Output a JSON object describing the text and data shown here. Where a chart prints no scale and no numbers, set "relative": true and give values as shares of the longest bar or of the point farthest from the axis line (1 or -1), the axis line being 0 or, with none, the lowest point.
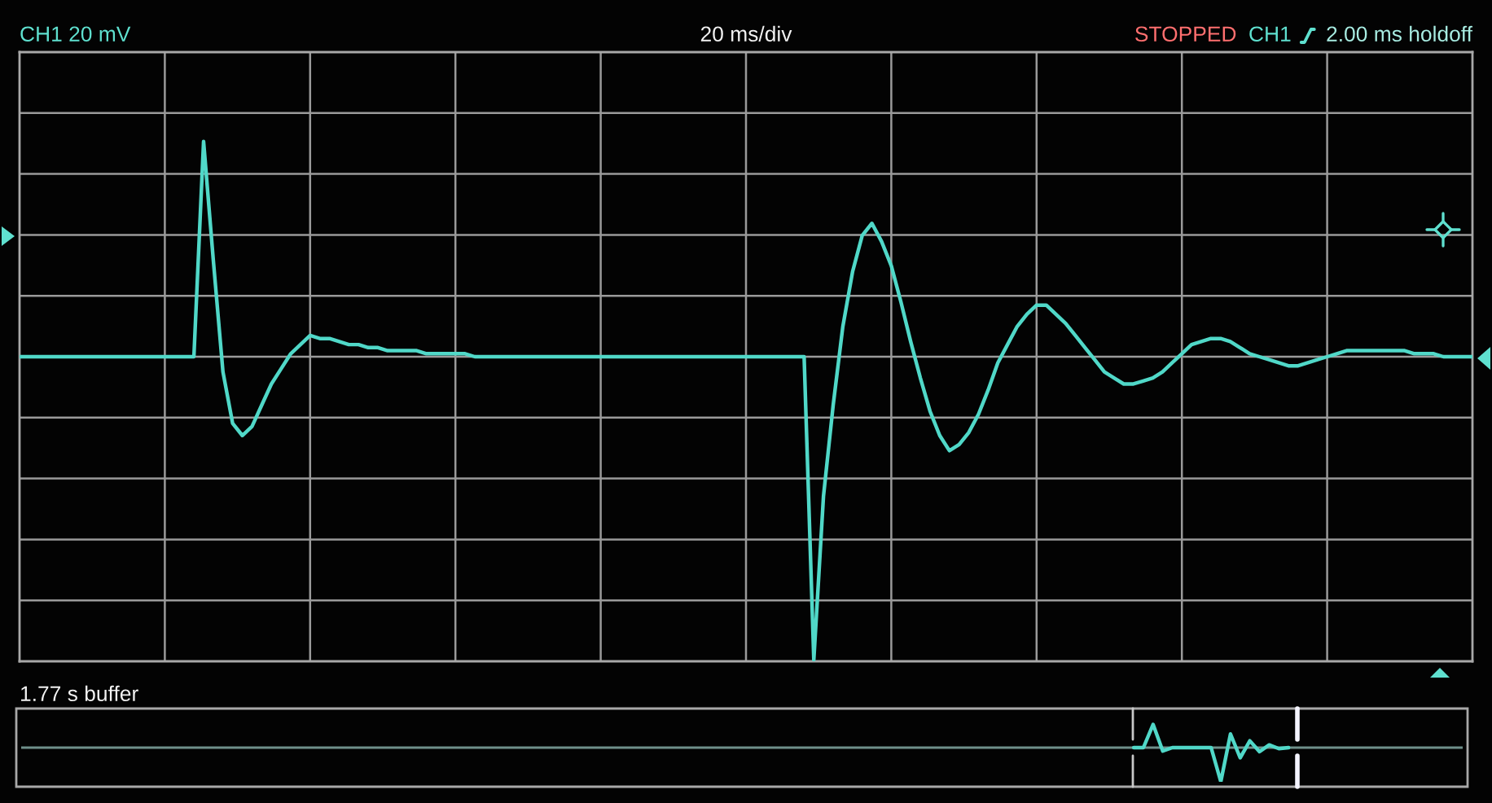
{
  "chart_data": [
    {
      "type": "line",
      "relative": true,
      "grid": true,
      "categories": [
        null,
        null,
        null,
        null,
        null,
        null,
        null,
        null,
        null,
        null,
        null,
        null,
        null,
        null,
        null,
        null,
        null,
        null,
        null,
        null,
        null,
        null,
        null,
        null,
        null,
        null,
        null,
        null,
        null,
        null,
        null,
        null,
        null,
        null,
        null,
        null,
        null,
        null,
        null,
        null,
        null,
        null,
        null,
        null,
        null,
        null,
        null,
        null,
        null,
        null,
        null,
        null,
        null,
        null,
        null,
        null,
        null,
        null,
        null,
        null,
        null,
        null,
        null,
        null,
        null,
        null,
        null,
        null,
        null,
        null,
        null,
        null,
        null,
        null,
        null,
        null,
        null,
        null,
        null,
        null,
        null,
        null,
        null,
        null,
        null,
        null,
        null,
        null,
        null,
        null,
        null,
        null,
        null,
        null,
        null,
        null,
        null,
        null,
        null,
        null,
        null,
        null,
        null,
        null,
        null,
        null,
        null,
        null,
        null,
        null,
        null,
        null,
        null,
        null,
        null,
        null,
        null,
        null,
        null,
        null,
        null,
        null,
        null,
        null,
        null,
        null,
        null,
        null,
        null,
        null,
        null,
        null,
        null,
        null,
        null,
        null,
        null,
        null,
        null,
        null,
        null,
        null,
        null,
        null,
        null,
        null,
        null,
        null,
        null,
        null,
        null
      ],
      "series": [
        {
          "color": "#50d8c8",
          "values": [
            0,
            0,
            0,
            0,
            0,
            0,
            0,
            0,
            0,
            0,
            0,
            0,
            0,
            0,
            0,
            0,
            0,
            0,
            0,
            0.71,
            0.32,
            -0.05,
            -0.22,
            -0.26,
            -0.23,
            -0.16,
            -0.09,
            -0.04,
            0.01,
            0.04,
            0.07,
            0.06,
            0.06,
            0.05,
            0.04,
            0.04,
            0.03,
            0.03,
            0.02,
            0.02,
            0.02,
            0.02,
            0.01,
            0.01,
            0.01,
            0.01,
            0.01,
            0,
            0,
            0,
            0,
            0,
            0,
            0,
            0,
            0,
            0,
            0,
            0,
            0,
            0,
            0,
            0,
            0,
            0,
            0,
            0,
            0,
            0,
            0,
            0,
            0,
            0,
            0,
            0,
            0,
            0,
            0,
            0,
            0,
            0,
            0,
            -1,
            -0.46,
            -0.16,
            0.1,
            0.28,
            0.4,
            0.44,
            0.38,
            0.3,
            0.18,
            0.05,
            -0.07,
            -0.18,
            -0.26,
            -0.31,
            -0.29,
            -0.25,
            -0.19,
            -0.11,
            -0.02,
            0.04,
            0.1,
            0.14,
            0.17,
            0.17,
            0.14,
            0.11,
            0.07,
            0.03,
            -0.01,
            -0.05,
            -0.07,
            -0.09,
            -0.09,
            -0.08,
            -0.07,
            -0.05,
            -0.02,
            0.01,
            0.04,
            0.05,
            0.06,
            0.06,
            0.05,
            0.03,
            0.01,
            0,
            -0.01,
            -0.02,
            -0.03,
            -0.03,
            -0.02,
            -0.01,
            0,
            0.01,
            0.02,
            0.02,
            0.02,
            0.02,
            0.02,
            0.02,
            0.02,
            0.01,
            0.01,
            0.01,
            0,
            0,
            0,
            0
          ]
        }
      ],
      "annotations": [
        "CH1 20 mV",
        "20 ms/div",
        "STOPPED",
        "CH1",
        "2.00 ms holdoff"
      ]
    },
    {
      "type": "line",
      "relative": true,
      "categories": [
        null,
        null,
        null,
        null,
        null,
        null,
        null,
        null,
        null,
        null,
        null,
        null,
        null,
        null,
        null,
        null,
        null,
        null,
        null,
        null,
        null,
        null,
        null,
        null,
        null,
        null,
        null,
        null,
        null,
        null,
        null,
        null,
        null,
        null,
        null,
        null,
        null,
        null,
        null,
        null,
        null,
        null,
        null,
        null,
        null,
        null,
        null,
        null,
        null,
        null,
        null,
        null,
        null,
        null,
        null,
        null,
        null,
        null,
        null,
        null,
        null,
        null,
        null,
        null,
        null,
        null,
        null,
        null,
        null,
        null,
        null,
        null,
        null,
        null,
        null,
        null,
        null,
        null,
        null,
        null,
        null,
        null,
        null,
        null,
        null,
        null,
        null,
        null,
        null,
        null,
        null,
        null,
        null,
        null,
        null,
        null,
        null,
        null,
        null,
        null,
        null,
        null,
        null,
        null,
        null,
        null,
        null,
        null,
        null,
        null,
        null,
        null,
        null,
        null,
        null,
        null,
        null,
        null,
        null,
        null,
        null,
        null,
        null,
        null,
        null,
        null,
        null,
        null,
        null,
        null,
        null,
        null,
        null,
        null,
        null,
        null,
        null,
        null,
        null,
        null,
        null,
        null,
        null,
        null,
        null,
        null,
        null,
        null,
        null,
        null
      ],
      "series": [
        {
          "color": "#50d8c8",
          "values": [
            null,
            null,
            null,
            null,
            null,
            null,
            null,
            null,
            null,
            null,
            null,
            null,
            null,
            null,
            null,
            null,
            null,
            null,
            null,
            null,
            null,
            null,
            null,
            null,
            null,
            null,
            null,
            null,
            null,
            null,
            null,
            null,
            null,
            null,
            null,
            null,
            null,
            null,
            null,
            null,
            null,
            null,
            null,
            null,
            null,
            null,
            null,
            null,
            null,
            null,
            null,
            null,
            null,
            null,
            null,
            null,
            null,
            null,
            null,
            null,
            null,
            null,
            null,
            null,
            null,
            null,
            null,
            null,
            null,
            null,
            null,
            null,
            null,
            null,
            null,
            null,
            null,
            null,
            null,
            null,
            null,
            null,
            null,
            null,
            null,
            null,
            null,
            null,
            null,
            null,
            null,
            null,
            null,
            null,
            null,
            null,
            null,
            null,
            null,
            null,
            null,
            null,
            null,
            null,
            null,
            null,
            null,
            null,
            null,
            null,
            null,
            null,
            null,
            null,
            null,
            0,
            0,
            0.68,
            -0.1,
            0,
            0,
            0,
            0,
            0,
            -1,
            0.4,
            -0.3,
            0.2,
            -0.12,
            0.08,
            -0.03,
            0,
            null,
            null,
            null,
            null,
            null,
            null,
            null,
            null,
            null,
            null,
            null,
            null,
            null,
            null,
            null,
            null,
            null,
            null
          ]
        }
      ],
      "annotations": [
        "1.77 s buffer"
      ]
    }
  ]
}
